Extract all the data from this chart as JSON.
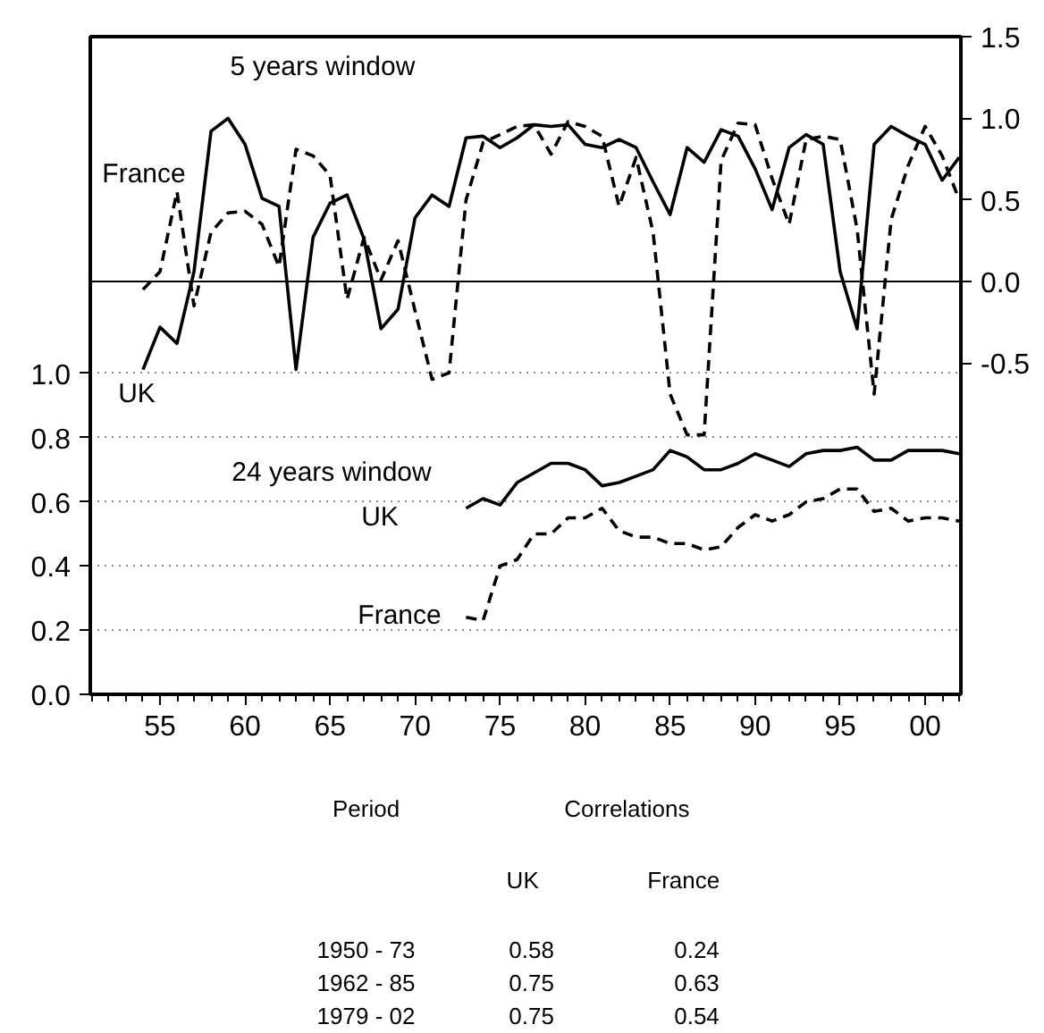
{
  "chart_data": {
    "type": "line",
    "xlim": [
      1950.9,
      2002.1
    ],
    "xticks": [
      {
        "value": 1951,
        "label": null
      },
      {
        "value": 1952,
        "label": null
      },
      {
        "value": 1953,
        "label": null
      },
      {
        "value": 1954,
        "label": null
      },
      {
        "value": 1955,
        "label": "55"
      },
      {
        "value": 1956,
        "label": null
      },
      {
        "value": 1957,
        "label": null
      },
      {
        "value": 1958,
        "label": null
      },
      {
        "value": 1959,
        "label": null
      },
      {
        "value": 1960,
        "label": "60"
      },
      {
        "value": 1961,
        "label": null
      },
      {
        "value": 1962,
        "label": null
      },
      {
        "value": 1963,
        "label": null
      },
      {
        "value": 1964,
        "label": null
      },
      {
        "value": 1965,
        "label": "65"
      },
      {
        "value": 1966,
        "label": null
      },
      {
        "value": 1967,
        "label": null
      },
      {
        "value": 1968,
        "label": null
      },
      {
        "value": 1969,
        "label": null
      },
      {
        "value": 1970,
        "label": "70"
      },
      {
        "value": 1971,
        "label": null
      },
      {
        "value": 1972,
        "label": null
      },
      {
        "value": 1973,
        "label": null
      },
      {
        "value": 1974,
        "label": null
      },
      {
        "value": 1975,
        "label": "75"
      },
      {
        "value": 1976,
        "label": null
      },
      {
        "value": 1977,
        "label": null
      },
      {
        "value": 1978,
        "label": null
      },
      {
        "value": 1979,
        "label": null
      },
      {
        "value": 1980,
        "label": "80"
      },
      {
        "value": 1981,
        "label": null
      },
      {
        "value": 1982,
        "label": null
      },
      {
        "value": 1983,
        "label": null
      },
      {
        "value": 1984,
        "label": null
      },
      {
        "value": 1985,
        "label": "85"
      },
      {
        "value": 1986,
        "label": null
      },
      {
        "value": 1987,
        "label": null
      },
      {
        "value": 1988,
        "label": null
      },
      {
        "value": 1989,
        "label": null
      },
      {
        "value": 1990,
        "label": "90"
      },
      {
        "value": 1991,
        "label": null
      },
      {
        "value": 1992,
        "label": null
      },
      {
        "value": 1993,
        "label": null
      },
      {
        "value": 1994,
        "label": null
      },
      {
        "value": 1995,
        "label": "95"
      },
      {
        "value": 1996,
        "label": null
      },
      {
        "value": 1997,
        "label": null
      },
      {
        "value": 1998,
        "label": null
      },
      {
        "value": 1999,
        "label": null
      },
      {
        "value": 2000,
        "label": "00"
      },
      {
        "value": 2001,
        "label": null
      },
      {
        "value": 2002,
        "label": null
      }
    ],
    "ylim": [
      0,
      2.05
    ],
    "yticks": [
      {
        "value": 0,
        "label": "0.0"
      },
      {
        "value": 0.2,
        "label": "0.2"
      },
      {
        "value": 0.4,
        "label": "0.4"
      },
      {
        "value": 0.6,
        "label": "0.6"
      },
      {
        "value": 0.8,
        "label": "0.8"
      },
      {
        "value": 1.0,
        "label": "1.0"
      }
    ],
    "y2lim": [
      -2.53,
      1.5
    ],
    "y2ticks": [
      {
        "value": -0.5,
        "label": "-0.5"
      },
      {
        "value": 0,
        "label": "0.0"
      },
      {
        "value": 0.5,
        "label": "0.5"
      },
      {
        "value": 1.0,
        "label": "1.0"
      },
      {
        "value": 1.5,
        "label": "1.5"
      }
    ],
    "grid": "y",
    "ref_lines": [
      {
        "axis": "y2",
        "value": 0,
        "color": "#000000",
        "line_style": "solid"
      }
    ],
    "series": [
      {
        "color": "#000000",
        "axis": "y2",
        "line_style": "solid",
        "x": [
          1954,
          1955,
          1956,
          1957,
          1958,
          1959,
          1960,
          1961,
          1962,
          1963,
          1964,
          1965,
          1966,
          1967,
          1968,
          1969,
          1970,
          1971,
          1972,
          1973,
          1974,
          1975,
          1976,
          1977,
          1978,
          1979,
          1980,
          1981,
          1982,
          1983,
          1984,
          1985,
          1986,
          1987,
          1988,
          1989,
          1990,
          1991,
          1992,
          1993,
          1994,
          1995,
          1996,
          1997,
          1998,
          1999,
          2000,
          2001,
          2002
        ],
        "values": [
          -0.54,
          -0.28,
          -0.38,
          0.06,
          0.92,
          1.0,
          0.84,
          0.51,
          0.46,
          -0.54,
          0.27,
          0.48,
          0.53,
          0.26,
          -0.29,
          -0.17,
          0.39,
          0.53,
          0.46,
          0.88,
          0.89,
          0.82,
          0.88,
          0.96,
          0.95,
          0.96,
          0.84,
          0.82,
          0.87,
          0.82,
          0.61,
          0.41,
          0.82,
          0.73,
          0.93,
          0.89,
          0.69,
          0.44,
          0.82,
          0.9,
          0.84,
          0.06,
          -0.29,
          0.84,
          0.95,
          0.89,
          0.84,
          0.62,
          0.76
        ]
      },
      {
        "color": "#000000",
        "axis": "y2",
        "line_style": "dashed",
        "x": [
          1954,
          1955,
          1956,
          1957,
          1958,
          1959,
          1960,
          1961,
          1962,
          1963,
          1964,
          1965,
          1966,
          1967,
          1968,
          1969,
          1970,
          1971,
          1972,
          1973,
          1974,
          1975,
          1976,
          1977,
          1978,
          1979,
          1980,
          1981,
          1982,
          1983,
          1984,
          1985,
          1986,
          1987,
          1988,
          1989,
          1990,
          1991,
          1992,
          1993,
          1994,
          1995,
          1996,
          1997,
          1998,
          1999,
          2000,
          2001,
          2002
        ],
        "values": [
          -0.05,
          0.06,
          0.55,
          -0.15,
          0.3,
          0.42,
          0.43,
          0.35,
          0.09,
          0.81,
          0.77,
          0.65,
          -0.11,
          0.27,
          0.01,
          0.25,
          -0.18,
          -0.6,
          -0.56,
          0.5,
          0.85,
          0.9,
          0.95,
          0.96,
          0.78,
          0.98,
          0.95,
          0.89,
          0.46,
          0.76,
          0.3,
          -0.69,
          -0.94,
          -0.94,
          0.74,
          0.97,
          0.96,
          0.63,
          0.35,
          0.87,
          0.89,
          0.87,
          0.32,
          -0.69,
          0.38,
          0.71,
          0.95,
          0.77,
          0.5
        ]
      },
      {
        "color": "#000000",
        "axis": "y",
        "line_style": "solid",
        "x": [
          1973,
          1974,
          1975,
          1976,
          1977,
          1978,
          1979,
          1980,
          1981,
          1982,
          1983,
          1984,
          1985,
          1986,
          1987,
          1988,
          1989,
          1990,
          1991,
          1992,
          1993,
          1994,
          1995,
          1996,
          1997,
          1998,
          1999,
          2000,
          2001,
          2002
        ],
        "values": [
          0.58,
          0.61,
          0.59,
          0.66,
          0.69,
          0.72,
          0.72,
          0.7,
          0.65,
          0.66,
          0.68,
          0.7,
          0.76,
          0.74,
          0.7,
          0.7,
          0.72,
          0.75,
          0.73,
          0.71,
          0.75,
          0.76,
          0.76,
          0.77,
          0.73,
          0.73,
          0.76,
          0.76,
          0.76,
          0.75
        ]
      },
      {
        "color": "#000000",
        "axis": "y",
        "line_style": "dashed",
        "x": [
          1973,
          1974,
          1975,
          1976,
          1977,
          1978,
          1979,
          1980,
          1981,
          1982,
          1983,
          1984,
          1985,
          1986,
          1987,
          1988,
          1989,
          1990,
          1991,
          1992,
          1993,
          1994,
          1995,
          1996,
          1997,
          1998,
          1999,
          2000,
          2001,
          2002
        ],
        "values": [
          0.24,
          0.23,
          0.4,
          0.42,
          0.5,
          0.5,
          0.55,
          0.55,
          0.58,
          0.51,
          0.49,
          0.49,
          0.47,
          0.47,
          0.45,
          0.46,
          0.52,
          0.56,
          0.54,
          0.56,
          0.6,
          0.61,
          0.64,
          0.64,
          0.57,
          0.58,
          0.54,
          0.55,
          0.55,
          0.54
        ]
      }
    ],
    "annotations": [
      "5 years window",
      "France",
      "UK",
      "24 years window",
      "UK",
      "France",
      "Period",
      "Correlations",
      "UK",
      "France",
      "1950 - 73",
      "0.58",
      "0.24",
      "1962 - 85",
      "0.75",
      "0.63",
      "1979 - 02",
      "0.75",
      "0.54"
    ]
  }
}
